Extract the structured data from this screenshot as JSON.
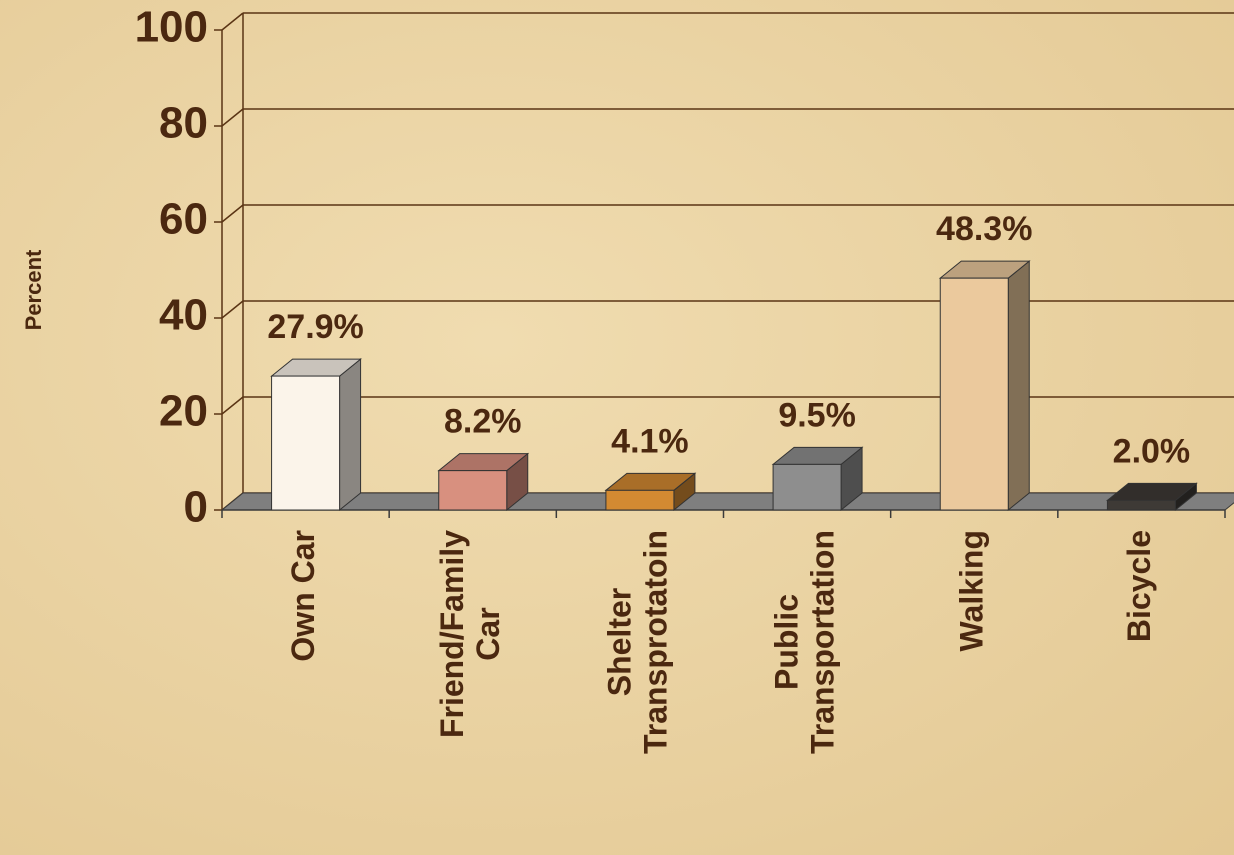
{
  "chart_data": {
    "type": "bar3d",
    "y_label": "Percent",
    "categories": [
      [
        "Own Car"
      ],
      [
        "Friend/Family",
        "Car"
      ],
      [
        "Shelter",
        "Transprotatoin"
      ],
      [
        "Public",
        "Transportation"
      ],
      [
        "Walking"
      ],
      [
        "Bicycle"
      ]
    ],
    "values": [
      27.9,
      8.2,
      4.1,
      9.5,
      48.3,
      2.0
    ],
    "value_labels": [
      "27.9%",
      "8.2%",
      "4.1%",
      "9.5%",
      "48.3%",
      "2.0%"
    ],
    "colors": [
      "#fbf4ea",
      "#d8907f",
      "#d38a32",
      "#8e8e8e",
      "#ebc99d",
      "#3e3a36"
    ],
    "ylim": [
      0,
      100
    ],
    "yticks": [
      0,
      20,
      40,
      60,
      80,
      100
    ],
    "grid": true
  }
}
